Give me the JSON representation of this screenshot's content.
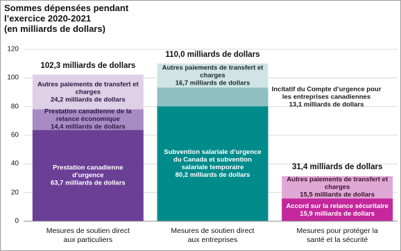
{
  "chart_data": {
    "type": "stacked-bar",
    "title": [
      "Sommes dépensées pendant",
      "l’exercice 2020-2021",
      "(en milliards de dollars)"
    ],
    "categories": [
      "Mesures de soutien direct aux particuliers",
      "Mesures de soutien direct aux entreprises",
      "Mesures pour protéger la santé et la sécurité"
    ],
    "total_labels": [
      "102,3 milliards de dollars",
      "110,0 milliards de dollars",
      "31,4 milliards de dollars"
    ],
    "stacks": [
      {
        "segments": [
          {
            "name": "Prestation canadienne d’urgence",
            "value": 63.7,
            "value_label": "63,7 milliards de dollars",
            "color": "#6b3f96",
            "label_color": "#ffffff"
          },
          {
            "name": "Prestation canadienne de la relance économique",
            "value": 14.4,
            "value_label": "14,4 milliards de dollars",
            "color": "#a98bc4",
            "label_color": "#2b1840"
          },
          {
            "name": "Autres paiements de transfert et charges",
            "value": 24.2,
            "value_label": "24,2 milliards de dollars",
            "color": "#ddd0e7",
            "label_color": "#2b1840"
          }
        ]
      },
      {
        "segments": [
          {
            "name": "Subvention salariale d’urgence du Canada et subvention salariale temporaire",
            "value": 80.2,
            "value_label": "80,2 milliards de dollars",
            "color": "#008b8b",
            "label_color": "#ffffff"
          },
          {
            "name": "Incitatif du Compte d’urgence pour les entreprises canadiennes",
            "value": 13.1,
            "value_label": "13,1 milliards de dollars",
            "color": "#8fbfc2",
            "label_color": "#1a1a1a",
            "label_outside": true
          },
          {
            "name": "Autres paiements de transfert et charges",
            "value": 16.7,
            "value_label": "16,7 milliards de dollars",
            "color": "#d0e4e5",
            "label_color": "#1a2a2a"
          }
        ]
      },
      {
        "segments": [
          {
            "name": "Accord sur la relance sécuritaire",
            "value": 15.9,
            "value_label": "15,9 milliards de dollars",
            "color": "#c4289c",
            "label_color": "#ffffff"
          },
          {
            "name": "Autres paiements de transfert et charges",
            "value": 15.5,
            "value_label": "15,5 milliards de dollars",
            "color": "#e0a9d5",
            "label_color": "#3a1030"
          }
        ]
      }
    ],
    "ylim": [
      0,
      120
    ],
    "yticks": [
      0,
      20,
      40,
      60,
      80,
      100,
      120
    ],
    "grid": true
  }
}
